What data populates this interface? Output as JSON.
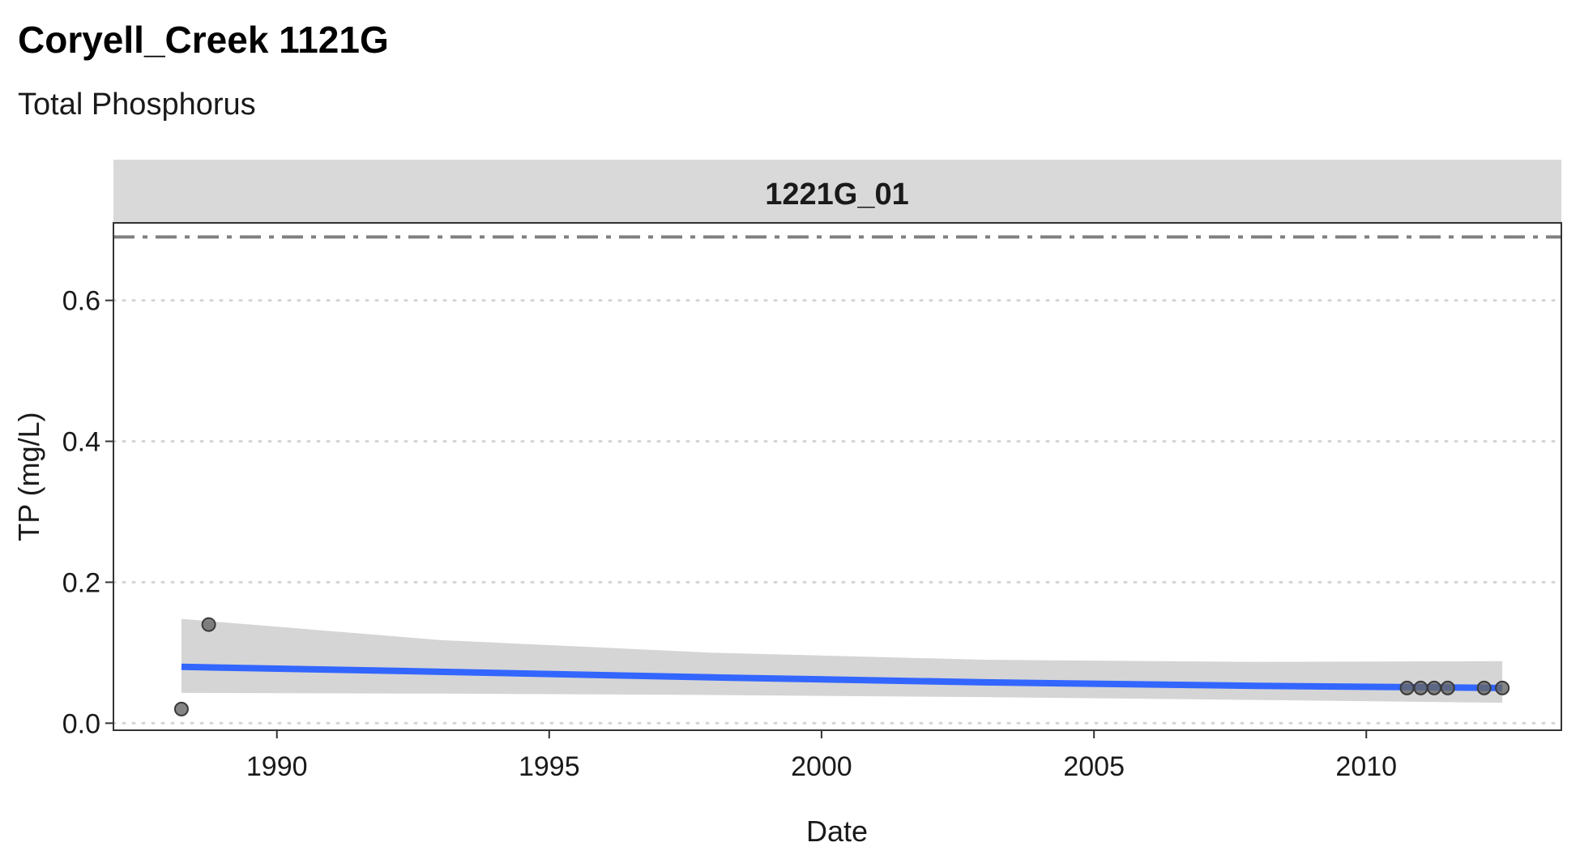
{
  "chart_data": {
    "type": "scatter",
    "title": "Coryell_Creek 1121G",
    "subtitle": "Total Phosphorus",
    "facet_label": "1221G_01",
    "xlabel": "Date",
    "ylabel": "TP (mg/L)",
    "xlim": [
      "1987-01-01",
      "2013-08-01"
    ],
    "ylim": [
      -0.01,
      0.71
    ],
    "x_ticks": [
      "1990",
      "1995",
      "2000",
      "2005",
      "2010"
    ],
    "y_ticks": [
      "0.0",
      "0.2",
      "0.4",
      "0.6"
    ],
    "grid": "horizontal dotted",
    "reference_line": {
      "y": 0.69,
      "style": "dashed",
      "color": "#808080"
    },
    "points": [
      {
        "x": "1988-04-01",
        "y": 0.02
      },
      {
        "x": "1988-10-01",
        "y": 0.14
      },
      {
        "x": "2010-10-01",
        "y": 0.05
      },
      {
        "x": "2011-01-01",
        "y": 0.05
      },
      {
        "x": "2011-04-01",
        "y": 0.05
      },
      {
        "x": "2011-07-01",
        "y": 0.05
      },
      {
        "x": "2012-03-01",
        "y": 0.05
      },
      {
        "x": "2012-07-01",
        "y": 0.05
      }
    ],
    "trend": {
      "x": [
        "1988-04-01",
        "1993-01-01",
        "1998-01-01",
        "2003-01-01",
        "2008-01-01",
        "2012-07-01"
      ],
      "y": [
        0.08,
        0.073,
        0.065,
        0.058,
        0.053,
        0.05
      ],
      "lower": [
        0.043,
        0.042,
        0.04,
        0.037,
        0.033,
        0.029
      ],
      "upper": [
        0.148,
        0.118,
        0.1,
        0.09,
        0.087,
        0.088
      ],
      "color": "#3366ff",
      "band_color": "#d3d3d3"
    },
    "point_color": "#666666"
  }
}
